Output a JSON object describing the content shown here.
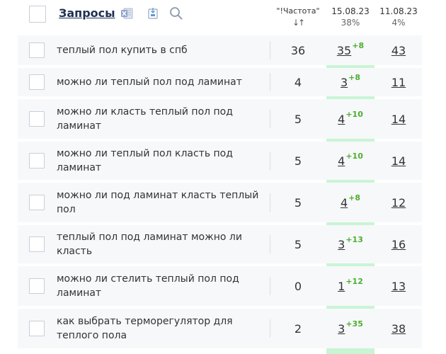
{
  "header": {
    "title": "Запросы",
    "freq_label": "\"!Частота\"",
    "sort_glyph": "↓↑",
    "date1": "15.08.23",
    "date1_pct": "38%",
    "date2": "11.08.23",
    "date2_pct": "4%"
  },
  "icons": {
    "excel": "excel-icon",
    "export": "export-icon",
    "search": "search-icon"
  },
  "colors": {
    "highlight_column": "#c9f5d5",
    "delta_green": "#4caf32",
    "title": "#1e3153"
  },
  "rows": [
    {
      "query": "теплый пол купить в спб",
      "freq": "36",
      "d1": "35",
      "d1_delta": "+8",
      "d2": "43"
    },
    {
      "query": "можно ли теплый пол под ламинат",
      "freq": "4",
      "d1": "3",
      "d1_delta": "+8",
      "d2": "11"
    },
    {
      "query": "можно ли класть теплый пол под ламинат",
      "freq": "5",
      "d1": "4",
      "d1_delta": "+10",
      "d2": "14"
    },
    {
      "query": "можно ли теплый пол класть под ламинат",
      "freq": "5",
      "d1": "4",
      "d1_delta": "+10",
      "d2": "14"
    },
    {
      "query": "можно ли под ламинат класть теплый пол",
      "freq": "5",
      "d1": "4",
      "d1_delta": "+8",
      "d2": "12"
    },
    {
      "query": "теплый пол под ламинат можно ли класть",
      "freq": "5",
      "d1": "3",
      "d1_delta": "+13",
      "d2": "16"
    },
    {
      "query": "можно ли стелить теплый пол под ламинат",
      "freq": "0",
      "d1": "1",
      "d1_delta": "+12",
      "d2": "13"
    },
    {
      "query": "как выбрать терморегулятор для теплого пола",
      "freq": "2",
      "d1": "3",
      "d1_delta": "+35",
      "d2": "38"
    }
  ]
}
